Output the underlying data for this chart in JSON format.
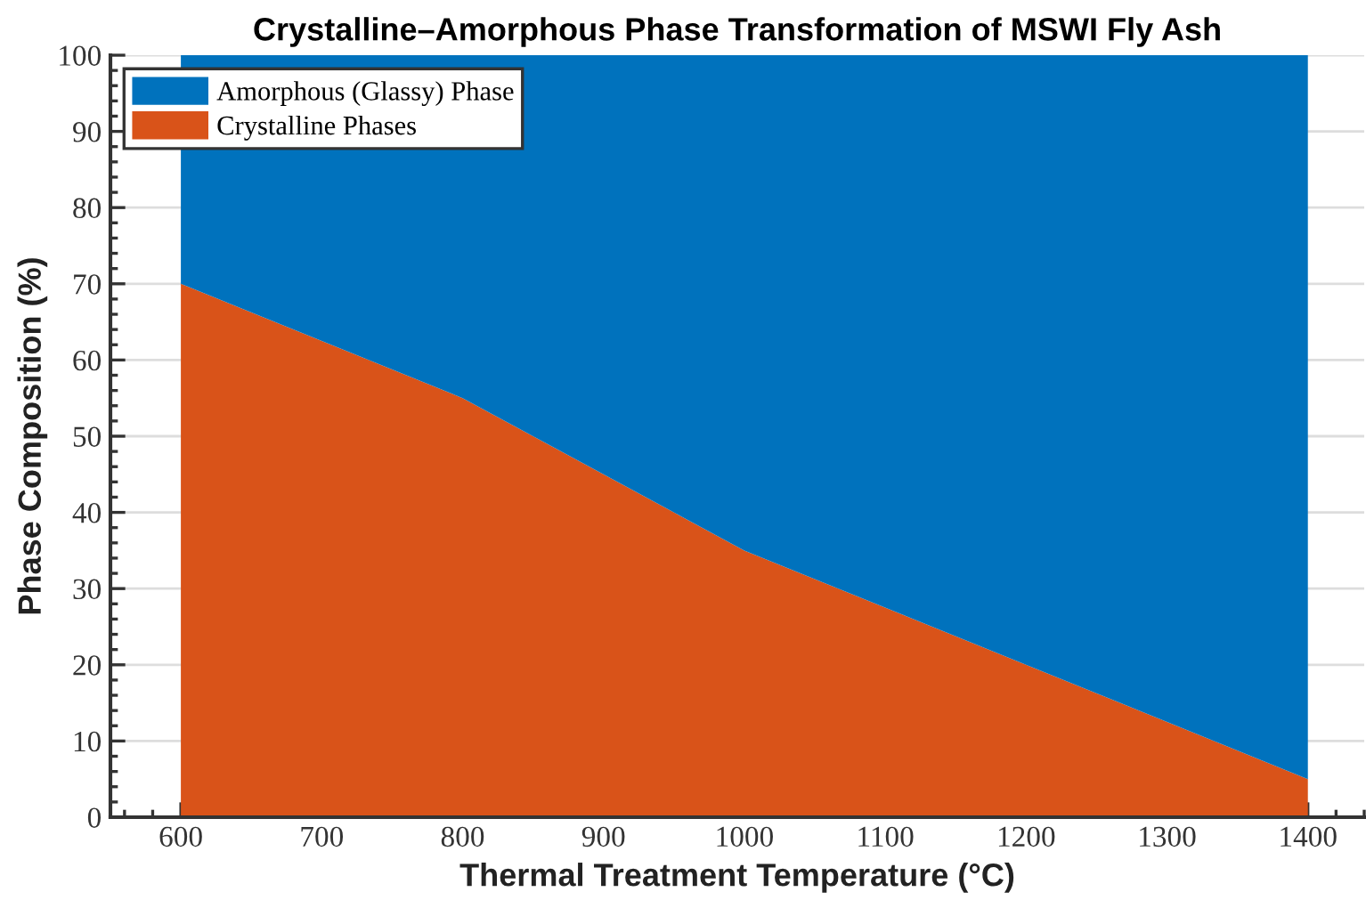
{
  "chart_data": {
    "type": "area",
    "stacked": true,
    "title": "Crystalline–Amorphous Phase Transformation of MSWI Fly Ash",
    "xlabel": "Thermal Treatment Temperature (°C)",
    "ylabel": "Phase Composition (%)",
    "x": [
      600,
      800,
      1000,
      1400
    ],
    "series": [
      {
        "name": "Crystalline Phases",
        "color": "#d95319",
        "values": [
          70,
          55,
          35,
          5
        ]
      },
      {
        "name": "Amorphous (Glassy) Phase",
        "color": "#0072bd",
        "values": [
          30,
          45,
          65,
          95
        ]
      }
    ],
    "xlim": [
      550,
      1440
    ],
    "ylim": [
      0,
      100
    ],
    "xticks": [
      600,
      700,
      800,
      900,
      1000,
      1100,
      1200,
      1300,
      1400
    ],
    "yticks": [
      0,
      10,
      20,
      30,
      40,
      50,
      60,
      70,
      80,
      90,
      100
    ],
    "grid": "y",
    "legend": "top left"
  }
}
